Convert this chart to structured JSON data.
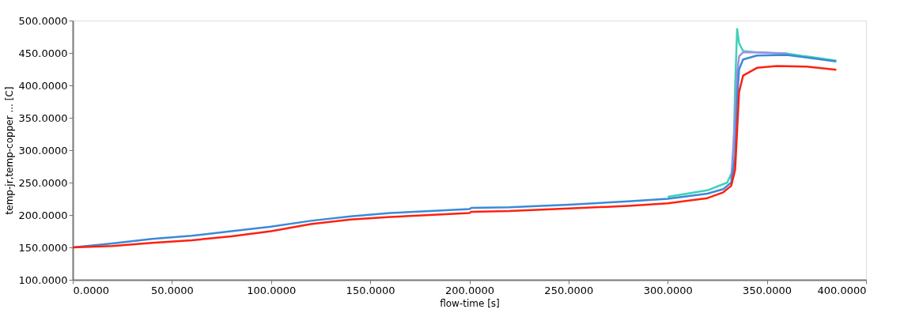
{
  "chart_data": {
    "type": "line",
    "xlabel": "flow-time [s]",
    "ylabel": "temp-jr,temp-copper ... [C]",
    "xlim": [
      0,
      400
    ],
    "ylim": [
      100,
      500
    ],
    "grid": false,
    "legend": false,
    "marker": "none",
    "line_style": "solid",
    "xticks": [
      {
        "value": 0,
        "label": "0.0000"
      },
      {
        "value": 50,
        "label": "50.0000"
      },
      {
        "value": 100,
        "label": "100.0000"
      },
      {
        "value": 150,
        "label": "150.0000"
      },
      {
        "value": 200,
        "label": "200.0000"
      },
      {
        "value": 250,
        "label": "250.0000"
      },
      {
        "value": 300,
        "label": "300.0000"
      },
      {
        "value": 350,
        "label": "350.0000"
      },
      {
        "value": 400,
        "label": "400.0000"
      }
    ],
    "yticks": [
      {
        "value": 100,
        "label": "100.0000"
      },
      {
        "value": 150,
        "label": "150.0000"
      },
      {
        "value": 200,
        "label": "200.0000"
      },
      {
        "value": 250,
        "label": "250.0000"
      },
      {
        "value": 300,
        "label": "300.0000"
      },
      {
        "value": 350,
        "label": "350.0000"
      },
      {
        "value": 400,
        "label": "400.0000"
      },
      {
        "value": 450,
        "label": "450.0000"
      },
      {
        "value": 500,
        "label": "500.0000"
      }
    ],
    "series": [
      {
        "color": "#40d0b8",
        "x": [
          300,
          320,
          330,
          333,
          334,
          335,
          336,
          338,
          345,
          360,
          385
        ],
        "values": [
          228,
          238,
          250,
          270,
          400,
          487,
          465,
          453,
          451,
          449,
          438
        ]
      },
      {
        "color": "#a090e0",
        "x": [
          332,
          334,
          335,
          336,
          338,
          345,
          360
        ],
        "values": [
          255,
          350,
          420,
          445,
          451,
          451,
          449
        ]
      },
      {
        "color": "#3a8ad8",
        "x": [
          0,
          20,
          40,
          60,
          80,
          100,
          120,
          140,
          160,
          180,
          200,
          201,
          220,
          250,
          280,
          300,
          320,
          328,
          332,
          334,
          335,
          336,
          338,
          345,
          360,
          385
        ],
        "values": [
          150,
          156,
          163,
          168,
          175,
          182,
          191,
          198,
          203,
          206,
          209,
          211,
          212,
          216,
          221,
          225,
          233,
          240,
          250,
          290,
          380,
          425,
          440,
          446,
          447,
          437
        ]
      },
      {
        "color": "#ff2010",
        "x": [
          0,
          20,
          40,
          60,
          80,
          100,
          120,
          140,
          160,
          180,
          200,
          201,
          220,
          250,
          280,
          300,
          320,
          328,
          332,
          334,
          335,
          336,
          338,
          345,
          355,
          370,
          385
        ],
        "values": [
          150,
          152,
          157,
          161,
          167,
          175,
          186,
          193,
          197,
          200,
          203,
          205,
          206,
          210,
          214,
          218,
          226,
          235,
          245,
          270,
          330,
          390,
          415,
          427,
          430,
          429,
          424
        ]
      }
    ]
  }
}
